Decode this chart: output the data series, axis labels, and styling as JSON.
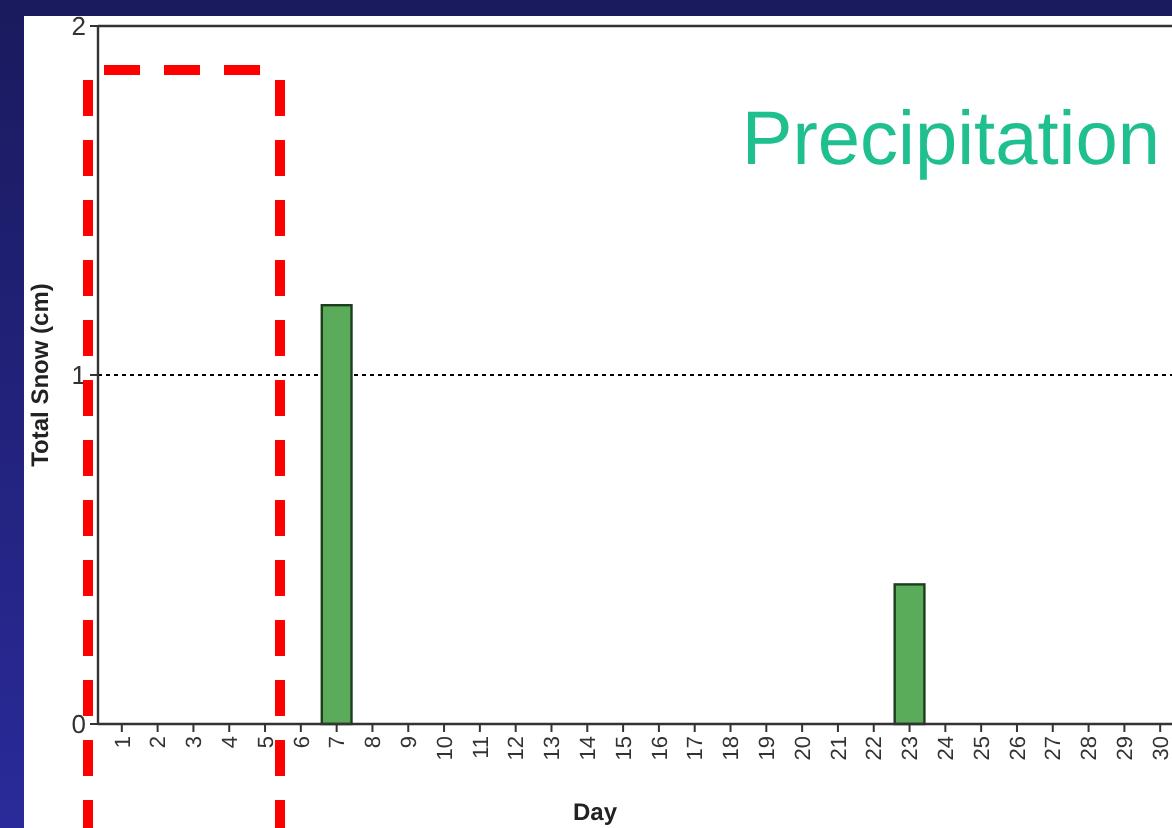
{
  "chart_data": {
    "type": "bar",
    "title": "Precipitation",
    "xlabel": "Day",
    "ylabel": "Total Snow (cm)",
    "categories": [
      "1",
      "2",
      "3",
      "4",
      "5",
      "6",
      "7",
      "8",
      "9",
      "10",
      "11",
      "12",
      "13",
      "14",
      "15",
      "16",
      "17",
      "18",
      "19",
      "20",
      "21",
      "22",
      "23",
      "24",
      "25",
      "26",
      "27",
      "28",
      "29",
      "30"
    ],
    "values": [
      0,
      0,
      0,
      0,
      0,
      0,
      1.2,
      0,
      0,
      0,
      0,
      0,
      0,
      0,
      0,
      0,
      0,
      0,
      0,
      0,
      0,
      0,
      0.4,
      0,
      0,
      0,
      0,
      0,
      0,
      0
    ],
    "color": "#5aab5a",
    "ylim": [
      0,
      2
    ],
    "yticks": [
      0,
      1,
      2
    ],
    "ref_lines": [
      {
        "axis": "y",
        "value": 1,
        "line_style": "dotted",
        "color": "#000000"
      }
    ],
    "grid": false
  }
}
